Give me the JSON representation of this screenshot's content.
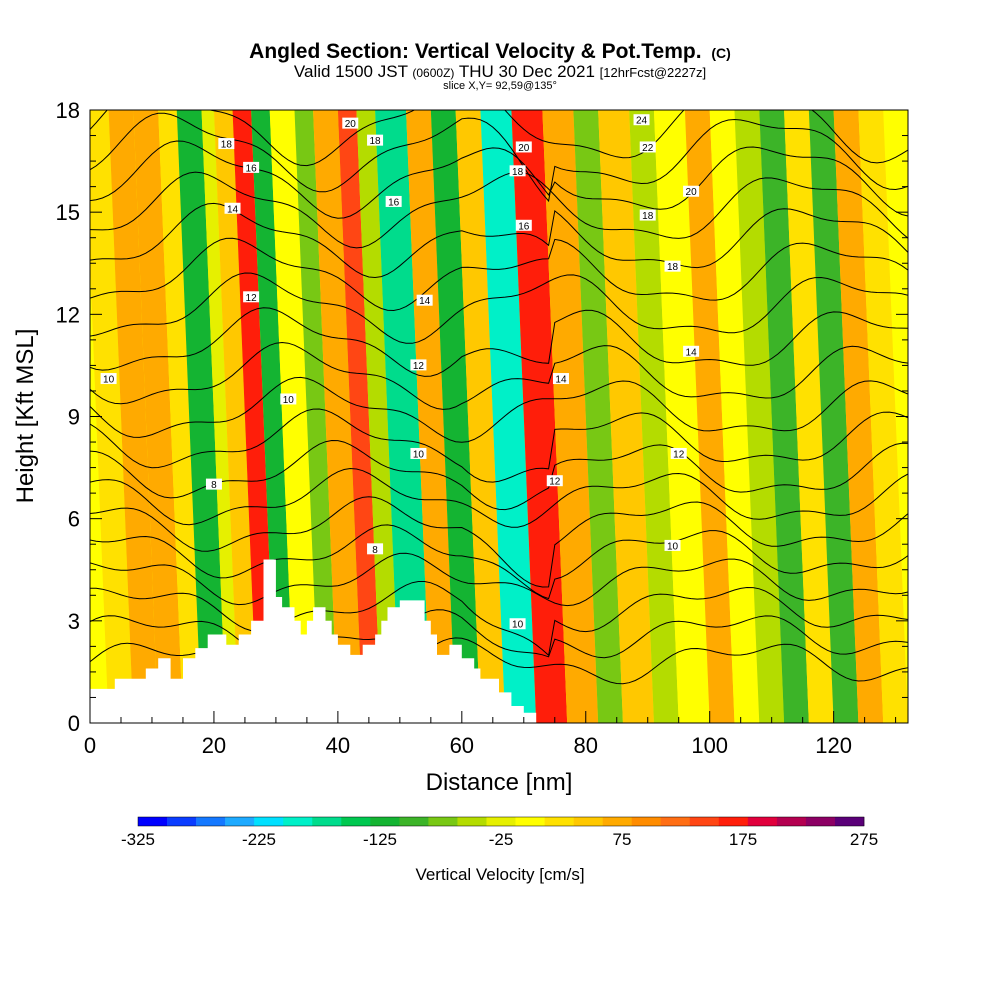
{
  "header": {
    "title_main": "Angled Section: Vertical Velocity & Pot.Temp.",
    "title_unit": "(C)",
    "valid_prefix": "Valid 1500 JST",
    "valid_utc": "(0600Z)",
    "valid_date": "THU 30 Dec 2021",
    "valid_fcst": "[12hrFcst@2227z]",
    "slice": "slice X,Y= 92,59@135°"
  },
  "chart_data": {
    "type": "heatmap",
    "xlabel": "Distance [nm]",
    "ylabel": "Height [Kft MSL]",
    "xlim": [
      0,
      132
    ],
    "ylim": [
      0,
      18
    ],
    "x_ticks": [
      "0",
      "20",
      "40",
      "60",
      "80",
      "100",
      "120"
    ],
    "y_ticks": [
      "0",
      "3",
      "6",
      "9",
      "12",
      "15",
      "18"
    ],
    "colorbar": {
      "label": "Vertical Velocity [cm/s]",
      "tick_labels": [
        "-325",
        "-225",
        "-125",
        "-25",
        "75",
        "175",
        "275"
      ],
      "range": [
        -325,
        275
      ],
      "colors": [
        "#0000ff",
        "#0a3cff",
        "#1478ff",
        "#1eaaff",
        "#00e0ff",
        "#00f0c8",
        "#00dc8c",
        "#00c850",
        "#14b432",
        "#3cb428",
        "#78c814",
        "#b4dc00",
        "#e6f000",
        "#ffff00",
        "#ffe100",
        "#ffc800",
        "#ffaa00",
        "#ff8c00",
        "#ff6e14",
        "#ff4614",
        "#ff1e0a",
        "#e1003c",
        "#b40050",
        "#8c0064",
        "#5a0078"
      ]
    },
    "vertical_velocity_cells": [
      {
        "x0": 0,
        "x1": 3,
        "value": 0
      },
      {
        "x0": 3,
        "x1": 7,
        "value": 20
      },
      {
        "x0": 7,
        "x1": 11,
        "value": 60
      },
      {
        "x0": 11,
        "x1": 15,
        "value": 80
      },
      {
        "x0": 15,
        "x1": 18,
        "value": 25
      },
      {
        "x0": 18,
        "x1": 22,
        "value": -125
      },
      {
        "x0": 22,
        "x1": 24,
        "value": -20
      },
      {
        "x0": 24,
        "x1": 27,
        "value": 40
      },
      {
        "x0": 27,
        "x1": 30,
        "value": 160
      },
      {
        "x0": 30,
        "x1": 33,
        "value": -125
      },
      {
        "x0": 33,
        "x1": 37,
        "value": 0
      },
      {
        "x0": 37,
        "x1": 40,
        "value": -80
      },
      {
        "x0": 40,
        "x1": 44,
        "value": 80
      },
      {
        "x0": 44,
        "x1": 47,
        "value": 140
      },
      {
        "x0": 47,
        "x1": 50,
        "value": -60
      },
      {
        "x0": 50,
        "x1": 55,
        "value": -160
      },
      {
        "x0": 55,
        "x1": 59,
        "value": 60
      },
      {
        "x0": 59,
        "x1": 63,
        "value": -120
      },
      {
        "x0": 63,
        "x1": 67,
        "value": 40
      },
      {
        "x0": 67,
        "x1": 72,
        "value": -200
      },
      {
        "x0": 72,
        "x1": 77,
        "value": 175
      },
      {
        "x0": 77,
        "x1": 82,
        "value": 60
      },
      {
        "x0": 82,
        "x1": 86,
        "value": -80
      },
      {
        "x0": 86,
        "x1": 91,
        "value": 50
      },
      {
        "x0": 91,
        "x1": 95,
        "value": -60
      },
      {
        "x0": 95,
        "x1": 100,
        "value": 10
      },
      {
        "x0": 100,
        "x1": 104,
        "value": 60
      },
      {
        "x0": 104,
        "x1": 108,
        "value": 0
      },
      {
        "x0": 108,
        "x1": 112,
        "value": -40
      },
      {
        "x0": 112,
        "x1": 116,
        "value": -100
      },
      {
        "x0": 116,
        "x1": 120,
        "value": 20
      },
      {
        "x0": 120,
        "x1": 124,
        "value": -90
      },
      {
        "x0": 124,
        "x1": 128,
        "value": 60
      },
      {
        "x0": 128,
        "x1": 132,
        "value": 20
      }
    ],
    "terrain_profile": [
      [
        0,
        1.0
      ],
      [
        4,
        1.0
      ],
      [
        4,
        1.3
      ],
      [
        9,
        1.3
      ],
      [
        9,
        1.6
      ],
      [
        11,
        1.6
      ],
      [
        11,
        1.9
      ],
      [
        13,
        1.9
      ],
      [
        13,
        1.3
      ],
      [
        15,
        1.3
      ],
      [
        15,
        1.9
      ],
      [
        17,
        1.9
      ],
      [
        17,
        2.2
      ],
      [
        19,
        2.2
      ],
      [
        19,
        2.6
      ],
      [
        22,
        2.6
      ],
      [
        22,
        2.3
      ],
      [
        24,
        2.3
      ],
      [
        24,
        2.6
      ],
      [
        26,
        2.6
      ],
      [
        26,
        3.0
      ],
      [
        28,
        3.0
      ],
      [
        28,
        4.8
      ],
      [
        30,
        4.8
      ],
      [
        30,
        3.7
      ],
      [
        31,
        3.7
      ],
      [
        31,
        3.4
      ],
      [
        33,
        3.4
      ],
      [
        33,
        3.0
      ],
      [
        34,
        3.0
      ],
      [
        34,
        2.6
      ],
      [
        35,
        2.6
      ],
      [
        35,
        3.0
      ],
      [
        36,
        3.0
      ],
      [
        36,
        3.4
      ],
      [
        38,
        3.4
      ],
      [
        38,
        3.0
      ],
      [
        39,
        3.0
      ],
      [
        39,
        2.6
      ],
      [
        40,
        2.6
      ],
      [
        40,
        2.3
      ],
      [
        42,
        2.3
      ],
      [
        42,
        2.0
      ],
      [
        44,
        2.0
      ],
      [
        44,
        2.3
      ],
      [
        46,
        2.3
      ],
      [
        46,
        2.6
      ],
      [
        47,
        2.6
      ],
      [
        47,
        3.0
      ],
      [
        48,
        3.0
      ],
      [
        48,
        3.4
      ],
      [
        50,
        3.4
      ],
      [
        50,
        3.6
      ],
      [
        54,
        3.6
      ],
      [
        54,
        3.0
      ],
      [
        55,
        3.0
      ],
      [
        55,
        2.6
      ],
      [
        56,
        2.6
      ],
      [
        56,
        2.0
      ],
      [
        58,
        2.0
      ],
      [
        58,
        2.3
      ],
      [
        60,
        2.3
      ],
      [
        60,
        1.9
      ],
      [
        62,
        1.9
      ],
      [
        62,
        1.6
      ],
      [
        63,
        1.6
      ],
      [
        63,
        1.3
      ],
      [
        66,
        1.3
      ],
      [
        66,
        0.9
      ],
      [
        68,
        0.9
      ],
      [
        68,
        0.5
      ],
      [
        70,
        0.5
      ],
      [
        70,
        0.3
      ],
      [
        72,
        0.3
      ],
      [
        72,
        0.0
      ]
    ],
    "contour_labels": [
      {
        "text": "18",
        "x": 22,
        "y": 17.0
      },
      {
        "text": "16",
        "x": 26,
        "y": 16.3
      },
      {
        "text": "14",
        "x": 23,
        "y": 15.1
      },
      {
        "text": "20",
        "x": 42,
        "y": 17.6
      },
      {
        "text": "18",
        "x": 46,
        "y": 17.1
      },
      {
        "text": "16",
        "x": 49,
        "y": 15.3
      },
      {
        "text": "14",
        "x": 54,
        "y": 12.4
      },
      {
        "text": "12",
        "x": 26,
        "y": 12.5
      },
      {
        "text": "12",
        "x": 53,
        "y": 10.5
      },
      {
        "text": "10",
        "x": 3,
        "y": 10.1
      },
      {
        "text": "10",
        "x": 32,
        "y": 9.5
      },
      {
        "text": "10",
        "x": 53,
        "y": 7.9
      },
      {
        "text": "8",
        "x": 20,
        "y": 7.0
      },
      {
        "text": "8",
        "x": 46,
        "y": 5.1
      },
      {
        "text": "20",
        "x": 70,
        "y": 16.9
      },
      {
        "text": "18",
        "x": 69,
        "y": 16.2
      },
      {
        "text": "16",
        "x": 70,
        "y": 14.6
      },
      {
        "text": "14",
        "x": 76,
        "y": 10.1
      },
      {
        "text": "12",
        "x": 75,
        "y": 7.1
      },
      {
        "text": "10",
        "x": 69,
        "y": 2.9
      },
      {
        "text": "24",
        "x": 89,
        "y": 17.7
      },
      {
        "text": "22",
        "x": 90,
        "y": 16.9
      },
      {
        "text": "20",
        "x": 97,
        "y": 15.6
      },
      {
        "text": "18",
        "x": 90,
        "y": 14.9
      },
      {
        "text": "18",
        "x": 94,
        "y": 13.4
      },
      {
        "text": "14",
        "x": 97,
        "y": 10.9
      },
      {
        "text": "12",
        "x": 95,
        "y": 7.9
      },
      {
        "text": "10",
        "x": 94,
        "y": 5.2
      }
    ]
  }
}
